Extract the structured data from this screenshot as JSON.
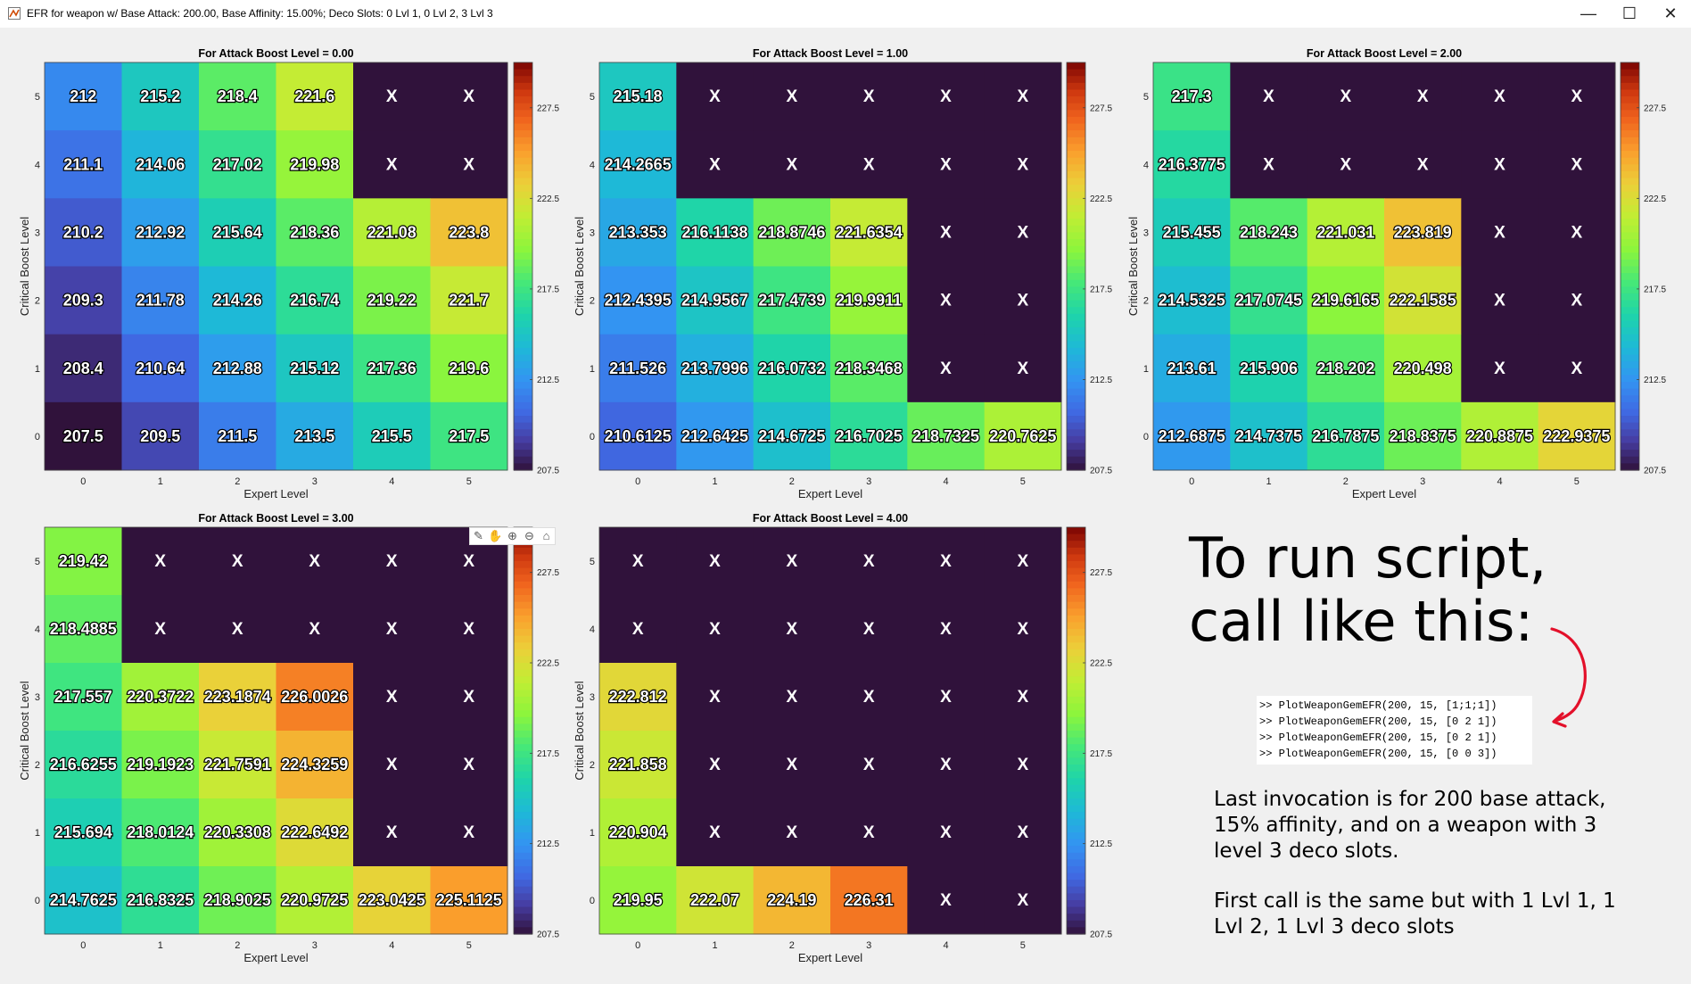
{
  "window": {
    "title": "EFR for weapon w/ Base Attack: 200.00, Base Affinity: 15.00%; Deco Slots: 0 Lvl 1, 0 Lvl 2, 3 Lvl 3",
    "minimize_symbol": "—",
    "maximize_symbol": "☐",
    "close_symbol": "✕"
  },
  "toolbar": {
    "icons": [
      "brush-icon",
      "pan-hand-icon",
      "zoom-in-icon",
      "zoom-out-icon",
      "home-icon"
    ]
  },
  "annotation": {
    "heading_line1": "To run script,",
    "heading_line2": "call like this:",
    "code_lines": [
      ">> PlotWeaponGemEFR(200, 15, [1;1;1])",
      ">> PlotWeaponGemEFR(200, 15, [0 2 1])",
      ">> PlotWeaponGemEFR(200, 15, [0 2 1])",
      ">> PlotWeaponGemEFR(200, 15, [0 0 3])"
    ],
    "paragraph1": "Last invocation is for 200 base attack, 15% affinity, and on a weapon with 3 level 3 deco slots.",
    "paragraph2": "First call is the same but with 1 Lvl 1, 1 Lvl 2, 1 Lvl 3 deco slots"
  },
  "chart_data": [
    {
      "type": "heatmap",
      "title": "For Attack Boost Level = 0.00",
      "xlabel": "Expert Level",
      "ylabel": "Critical Boost Level",
      "x": [
        0,
        1,
        2,
        3,
        4,
        5
      ],
      "y": [
        5,
        4,
        3,
        2,
        1,
        0
      ],
      "cells": [
        [
          "212",
          "215.2",
          "218.4",
          "221.6",
          "X",
          "X"
        ],
        [
          "211.1",
          "214.06",
          "217.02",
          "219.98",
          "X",
          "X"
        ],
        [
          "210.2",
          "212.92",
          "215.64",
          "218.36",
          "221.08",
          "223.8"
        ],
        [
          "209.3",
          "211.78",
          "214.26",
          "216.74",
          "219.22",
          "221.7"
        ],
        [
          "208.4",
          "210.64",
          "212.88",
          "215.12",
          "217.36",
          "219.6"
        ],
        [
          "207.5",
          "209.5",
          "211.5",
          "213.5",
          "215.5",
          "217.5"
        ]
      ],
      "colorbar_ticks": [
        "207.5",
        "212.5",
        "217.5",
        "222.5",
        "227.5"
      ],
      "clim": [
        207.5,
        230
      ]
    },
    {
      "type": "heatmap",
      "title": "For Attack Boost Level = 1.00",
      "xlabel": "Expert Level",
      "ylabel": "Critical Boost Level",
      "x": [
        0,
        1,
        2,
        3,
        4,
        5
      ],
      "y": [
        5,
        4,
        3,
        2,
        1,
        0
      ],
      "cells": [
        [
          "215.18",
          "X",
          "X",
          "X",
          "X",
          "X"
        ],
        [
          "214.2665",
          "X",
          "X",
          "X",
          "X",
          "X"
        ],
        [
          "213.353",
          "216.1138",
          "218.8746",
          "221.6354",
          "X",
          "X"
        ],
        [
          "212.4395",
          "214.9567",
          "217.4739",
          "219.9911",
          "X",
          "X"
        ],
        [
          "211.526",
          "213.7996",
          "216.0732",
          "218.3468",
          "X",
          "X"
        ],
        [
          "210.6125",
          "212.6425",
          "214.6725",
          "216.7025",
          "218.7325",
          "220.7625"
        ]
      ],
      "colorbar_ticks": [
        "207.5",
        "212.5",
        "217.5",
        "222.5",
        "227.5"
      ],
      "clim": [
        207.5,
        230
      ]
    },
    {
      "type": "heatmap",
      "title": "For Attack Boost Level = 2.00",
      "xlabel": "Expert Level",
      "ylabel": "Critical Boost Level",
      "x": [
        0,
        1,
        2,
        3,
        4,
        5
      ],
      "y": [
        5,
        4,
        3,
        2,
        1,
        0
      ],
      "cells": [
        [
          "217.3",
          "X",
          "X",
          "X",
          "X",
          "X"
        ],
        [
          "216.3775",
          "X",
          "X",
          "X",
          "X",
          "X"
        ],
        [
          "215.455",
          "218.243",
          "221.031",
          "223.819",
          "X",
          "X"
        ],
        [
          "214.5325",
          "217.0745",
          "219.6165",
          "222.1585",
          "X",
          "X"
        ],
        [
          "213.61",
          "215.906",
          "218.202",
          "220.498",
          "X",
          "X"
        ],
        [
          "212.6875",
          "214.7375",
          "216.7875",
          "218.8375",
          "220.8875",
          "222.9375"
        ]
      ],
      "colorbar_ticks": [
        "207.5",
        "212.5",
        "217.5",
        "222.5",
        "227.5"
      ],
      "clim": [
        207.5,
        230
      ]
    },
    {
      "type": "heatmap",
      "title": "For Attack Boost Level = 3.00",
      "xlabel": "Expert Level",
      "ylabel": "Critical Boost Level",
      "x": [
        0,
        1,
        2,
        3,
        4,
        5
      ],
      "y": [
        5,
        4,
        3,
        2,
        1,
        0
      ],
      "cells": [
        [
          "219.42",
          "X",
          "X",
          "X",
          "X",
          "X"
        ],
        [
          "218.4885",
          "X",
          "X",
          "X",
          "X",
          "X"
        ],
        [
          "217.557",
          "220.3722",
          "223.1874",
          "226.0026",
          "X",
          "X"
        ],
        [
          "216.6255",
          "219.1923",
          "221.7591",
          "224.3259",
          "X",
          "X"
        ],
        [
          "215.694",
          "218.0124",
          "220.3308",
          "222.6492",
          "X",
          "X"
        ],
        [
          "214.7625",
          "216.8325",
          "218.9025",
          "220.9725",
          "223.0425",
          "225.1125"
        ]
      ],
      "colorbar_ticks": [
        "207.5",
        "212.5",
        "217.5",
        "222.5",
        "227.5"
      ],
      "clim": [
        207.5,
        230
      ]
    },
    {
      "type": "heatmap",
      "title": "For Attack Boost Level = 4.00",
      "xlabel": "Expert Level",
      "ylabel": "Critical Boost Level",
      "x": [
        0,
        1,
        2,
        3,
        4,
        5
      ],
      "y": [
        5,
        4,
        3,
        2,
        1,
        0
      ],
      "cells": [
        [
          "X",
          "X",
          "X",
          "X",
          "X",
          "X"
        ],
        [
          "X",
          "X",
          "X",
          "X",
          "X",
          "X"
        ],
        [
          "222.812",
          "X",
          "X",
          "X",
          "X",
          "X"
        ],
        [
          "221.858",
          "X",
          "X",
          "X",
          "X",
          "X"
        ],
        [
          "220.904",
          "X",
          "X",
          "X",
          "X",
          "X"
        ],
        [
          "219.95",
          "222.07",
          "224.19",
          "226.31",
          "X",
          "X"
        ]
      ],
      "colorbar_ticks": [
        "207.5",
        "212.5",
        "217.5",
        "222.5",
        "227.5"
      ],
      "clim": [
        207.5,
        230
      ]
    }
  ]
}
